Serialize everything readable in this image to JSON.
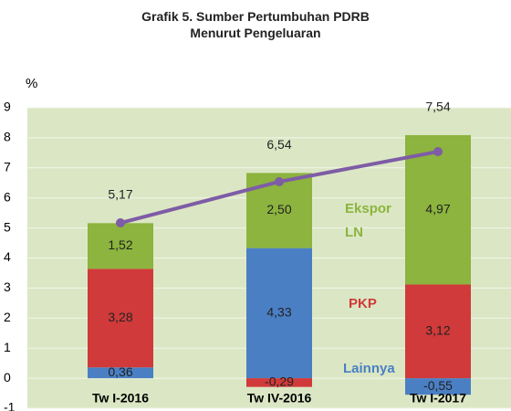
{
  "chart_data": {
    "type": "stacked_bar_line",
    "title": [
      "Grafik 5. Sumber Pertumbuhan PDRB",
      "Menurut Pengeluaran"
    ],
    "y_label": "%",
    "categories": [
      "Tw I-2016",
      "Tw IV-2016",
      "Tw I-2017"
    ],
    "series": [
      {
        "name": "Lainnya",
        "color": "#4a7fc4",
        "values": [
          0.36,
          4.33,
          -0.55
        ],
        "value_labels": [
          "0,36",
          "4,33",
          "-0,55"
        ]
      },
      {
        "name": "PKP",
        "color": "#d03a3a",
        "values": [
          3.28,
          -0.29,
          3.12
        ],
        "value_labels": [
          "3,28",
          "-0,29",
          "3,12"
        ]
      },
      {
        "name": "Ekspor LN",
        "color": "#8cb43e",
        "values": [
          1.52,
          2.5,
          4.97
        ],
        "value_labels": [
          "1,52",
          "2,50",
          "4,97"
        ]
      }
    ],
    "line": {
      "color": "#7e5ca6",
      "values": [
        5.17,
        6.54,
        7.54
      ],
      "value_labels": [
        "5,17",
        "6,54",
        "7,54"
      ]
    },
    "ylim": [
      -1,
      9
    ],
    "yticks": [
      -1,
      0,
      1,
      2,
      3,
      4,
      5,
      6,
      7,
      8,
      9
    ],
    "grid": true
  }
}
